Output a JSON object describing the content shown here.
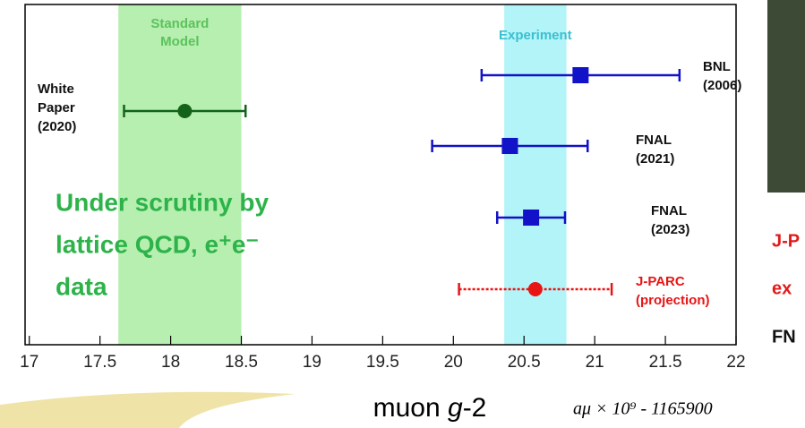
{
  "chart_data": {
    "type": "errorbar",
    "labels": [
      [
        "White",
        "Paper",
        "(2020)"
      ],
      [
        "BNL",
        "(2006)"
      ],
      [
        "FNAL",
        "(2021)"
      ],
      [
        "FNAL",
        "(2023)"
      ],
      [
        "J-PARC",
        "(projection)"
      ]
    ],
    "values": [
      18.1,
      20.9,
      20.4,
      20.55,
      20.58
    ],
    "errors": [
      0.43,
      0.7,
      0.55,
      0.24,
      0.54
    ],
    "colors": [
      "#13641a",
      "#1212c8",
      "#1212c8",
      "#1212c8",
      "#e81414"
    ],
    "markers": [
      "circle",
      "square",
      "square",
      "square",
      "circle"
    ],
    "dashed": [
      false,
      false,
      false,
      false,
      true
    ],
    "bands": [
      {
        "label": [
          "Standard",
          "Model"
        ],
        "range": [
          17.63,
          18.5
        ],
        "color": "#b6efb0",
        "text_color": "#5cc25c"
      },
      {
        "label": [
          "Experiment"
        ],
        "range": [
          20.36,
          20.8
        ],
        "color": "#b3f4f8",
        "text_color": "#3bbfd0"
      }
    ],
    "annotation": [
      "Under scrutiny by",
      "lattice QCD, e⁺e⁻",
      "data"
    ],
    "title_parts": [
      "muon ",
      "g",
      "-2"
    ],
    "xlabel": "aμ × 10⁹ - 1165900",
    "xlim": [
      16.97,
      22
    ],
    "xticks": [
      17,
      17.5,
      18,
      18.5,
      19,
      19.5,
      20,
      20.5,
      21,
      21.5,
      22
    ]
  },
  "side_text": [
    "J-P",
    "ex",
    "FN"
  ]
}
